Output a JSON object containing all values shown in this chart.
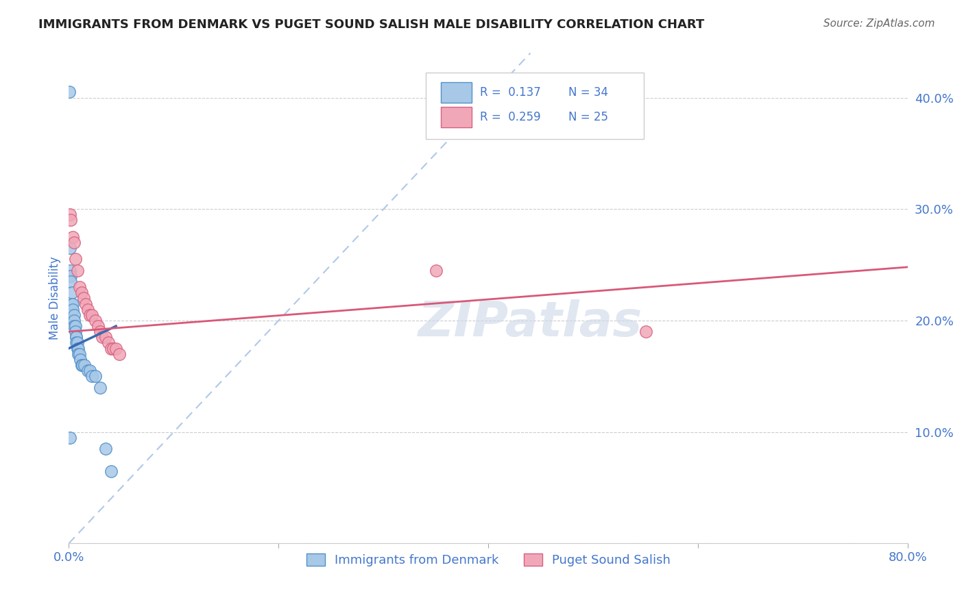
{
  "title": "IMMIGRANTS FROM DENMARK VS PUGET SOUND SALISH MALE DISABILITY CORRELATION CHART",
  "source": "Source: ZipAtlas.com",
  "ylabel": "Male Disability",
  "xlim": [
    0.0,
    0.8
  ],
  "ylim": [
    0.0,
    0.44
  ],
  "label1": "Immigrants from Denmark",
  "label2": "Puget Sound Salish",
  "color_blue_fill": "#a8c8e8",
  "color_blue_edge": "#5090c8",
  "color_pink_fill": "#f0a8b8",
  "color_pink_edge": "#d86080",
  "color_blue_line": "#3a6ab0",
  "color_pink_line": "#d85878",
  "color_diag": "#b0c8e8",
  "background_color": "#ffffff",
  "grid_color": "#cccccc",
  "title_color": "#222222",
  "axis_label_color": "#4477cc",
  "tick_label_color": "#4477cc",
  "watermark": "ZIPatlas",
  "watermark_color": "#ccd8e8",
  "denmark_x": [
    0.0005,
    0.001,
    0.001,
    0.002,
    0.002,
    0.003,
    0.003,
    0.004,
    0.004,
    0.005,
    0.005,
    0.005,
    0.006,
    0.006,
    0.007,
    0.007,
    0.007,
    0.008,
    0.008,
    0.009,
    0.009,
    0.01,
    0.011,
    0.012,
    0.013,
    0.015,
    0.018,
    0.02,
    0.022,
    0.025,
    0.03,
    0.035,
    0.04,
    0.001
  ],
  "denmark_y": [
    0.405,
    0.265,
    0.245,
    0.24,
    0.235,
    0.225,
    0.215,
    0.215,
    0.21,
    0.205,
    0.2,
    0.195,
    0.195,
    0.19,
    0.185,
    0.185,
    0.18,
    0.18,
    0.175,
    0.175,
    0.17,
    0.17,
    0.165,
    0.16,
    0.16,
    0.16,
    0.155,
    0.155,
    0.15,
    0.15,
    0.14,
    0.085,
    0.065,
    0.095
  ],
  "salish_x": [
    0.001,
    0.002,
    0.004,
    0.005,
    0.006,
    0.008,
    0.01,
    0.012,
    0.014,
    0.016,
    0.018,
    0.02,
    0.022,
    0.025,
    0.028,
    0.03,
    0.032,
    0.035,
    0.038,
    0.04,
    0.042,
    0.045,
    0.048,
    0.35,
    0.55
  ],
  "salish_y": [
    0.295,
    0.29,
    0.275,
    0.27,
    0.255,
    0.245,
    0.23,
    0.225,
    0.22,
    0.215,
    0.21,
    0.205,
    0.205,
    0.2,
    0.195,
    0.19,
    0.185,
    0.185,
    0.18,
    0.175,
    0.175,
    0.175,
    0.17,
    0.245,
    0.19
  ],
  "pink_line_x0": 0.0,
  "pink_line_x1": 0.8,
  "pink_line_y0": 0.19,
  "pink_line_y1": 0.248,
  "blue_line_x0": 0.0,
  "blue_line_x1": 0.045,
  "blue_line_y0": 0.175,
  "blue_line_y1": 0.195
}
